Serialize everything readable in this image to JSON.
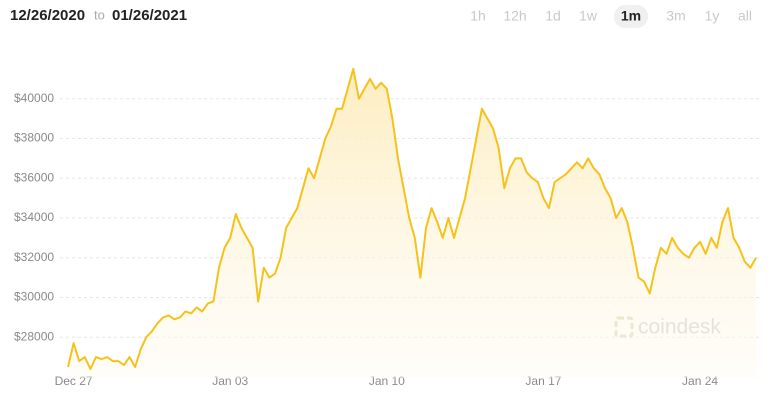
{
  "header": {
    "from": "12/26/2020",
    "joiner": "to",
    "to": "01/26/2021"
  },
  "range_buttons": [
    "1h",
    "12h",
    "1d",
    "1w",
    "1m",
    "3m",
    "1y",
    "all"
  ],
  "selected_range": "1m",
  "watermark": "coindesk",
  "chart_data": {
    "type": "area",
    "color": "#f5c21b",
    "x": [
      "2020-12-26T18:00",
      "2020-12-27T00:00",
      "2020-12-27T06:00",
      "2020-12-27T12:00",
      "2020-12-27T18:00",
      "2020-12-28T00:00",
      "2020-12-28T06:00",
      "2020-12-28T12:00",
      "2020-12-28T18:00",
      "2020-12-29T00:00",
      "2020-12-29T06:00",
      "2020-12-29T12:00",
      "2020-12-29T18:00",
      "2020-12-30T00:00",
      "2020-12-30T06:00",
      "2020-12-30T12:00",
      "2020-12-30T18:00",
      "2020-12-31T00:00",
      "2020-12-31T06:00",
      "2020-12-31T12:00",
      "2020-12-31T18:00",
      "2021-01-01T00:00",
      "2021-01-01T06:00",
      "2021-01-01T12:00",
      "2021-01-01T18:00",
      "2021-01-02T00:00",
      "2021-01-02T06:00",
      "2021-01-02T12:00",
      "2021-01-02T18:00",
      "2021-01-03T00:00",
      "2021-01-03T06:00",
      "2021-01-03T12:00",
      "2021-01-03T18:00",
      "2021-01-04T00:00",
      "2021-01-04T06:00",
      "2021-01-04T12:00",
      "2021-01-04T18:00",
      "2021-01-05T00:00",
      "2021-01-05T06:00",
      "2021-01-05T12:00",
      "2021-01-05T18:00",
      "2021-01-06T00:00",
      "2021-01-06T06:00",
      "2021-01-06T12:00",
      "2021-01-06T18:00",
      "2021-01-07T00:00",
      "2021-01-07T06:00",
      "2021-01-07T12:00",
      "2021-01-07T18:00",
      "2021-01-08T00:00",
      "2021-01-08T06:00",
      "2021-01-08T12:00",
      "2021-01-08T18:00",
      "2021-01-09T00:00",
      "2021-01-09T06:00",
      "2021-01-09T12:00",
      "2021-01-09T18:00",
      "2021-01-10T00:00",
      "2021-01-10T06:00",
      "2021-01-10T12:00",
      "2021-01-10T18:00",
      "2021-01-11T00:00",
      "2021-01-11T06:00",
      "2021-01-11T12:00",
      "2021-01-11T18:00",
      "2021-01-12T00:00",
      "2021-01-12T06:00",
      "2021-01-12T12:00",
      "2021-01-12T18:00",
      "2021-01-13T00:00",
      "2021-01-13T06:00",
      "2021-01-13T12:00",
      "2021-01-13T18:00",
      "2021-01-14T00:00",
      "2021-01-14T06:00",
      "2021-01-14T12:00",
      "2021-01-14T18:00",
      "2021-01-15T00:00",
      "2021-01-15T06:00",
      "2021-01-15T12:00",
      "2021-01-15T18:00",
      "2021-01-16T00:00",
      "2021-01-16T06:00",
      "2021-01-16T12:00",
      "2021-01-16T18:00",
      "2021-01-17T00:00",
      "2021-01-17T06:00",
      "2021-01-17T12:00",
      "2021-01-17T18:00",
      "2021-01-18T00:00",
      "2021-01-18T06:00",
      "2021-01-18T12:00",
      "2021-01-18T18:00",
      "2021-01-19T00:00",
      "2021-01-19T06:00",
      "2021-01-19T12:00",
      "2021-01-19T18:00",
      "2021-01-20T00:00",
      "2021-01-20T06:00",
      "2021-01-20T12:00",
      "2021-01-20T18:00",
      "2021-01-21T00:00",
      "2021-01-21T06:00",
      "2021-01-21T12:00",
      "2021-01-21T18:00",
      "2021-01-22T00:00",
      "2021-01-22T06:00",
      "2021-01-22T12:00",
      "2021-01-22T18:00",
      "2021-01-23T00:00",
      "2021-01-23T06:00",
      "2021-01-23T12:00",
      "2021-01-23T18:00",
      "2021-01-24T00:00",
      "2021-01-24T06:00",
      "2021-01-24T12:00",
      "2021-01-24T18:00",
      "2021-01-25T00:00",
      "2021-01-25T06:00",
      "2021-01-25T12:00",
      "2021-01-25T18:00",
      "2021-01-26T00:00",
      "2021-01-26T06:00",
      "2021-01-26T12:00"
    ],
    "values": [
      26500,
      27700,
      26800,
      27000,
      26400,
      27000,
      26900,
      27000,
      26800,
      26800,
      26600,
      27000,
      26500,
      27400,
      28000,
      28300,
      28700,
      29000,
      29100,
      28900,
      29000,
      29300,
      29200,
      29500,
      29300,
      29700,
      29800,
      31500,
      32500,
      33000,
      34200,
      33500,
      33000,
      32500,
      29800,
      31500,
      31000,
      31200,
      32000,
      33500,
      34000,
      34500,
      35500,
      36500,
      36000,
      37000,
      38000,
      38600,
      39500,
      39500,
      40500,
      41500,
      40000,
      40500,
      41000,
      40500,
      40800,
      40500,
      39000,
      37000,
      35500,
      34000,
      33000,
      31000,
      33500,
      34500,
      33800,
      33000,
      34000,
      33000,
      34000,
      35000,
      36500,
      38000,
      39500,
      39000,
      38500,
      37500,
      35500,
      36500,
      37000,
      37000,
      36300,
      36000,
      35800,
      35000,
      34500,
      35800,
      36000,
      36200,
      36500,
      36800,
      36500,
      37000,
      36500,
      36200,
      35500,
      35000,
      34000,
      34500,
      33800,
      32500,
      31000,
      30800,
      30200,
      31500,
      32500,
      32200,
      33000,
      32500,
      32200,
      32000,
      32500,
      32800,
      32200,
      33000,
      32500,
      33800,
      34500,
      33000,
      32500,
      31800,
      31500,
      32000
    ],
    "xlim": [
      "2020-12-26T18:00",
      "2021-01-26T12:00"
    ],
    "xticks": [
      {
        "value": "2020-12-27T00:00",
        "label": "Dec 27"
      },
      {
        "value": "2021-01-03T00:00",
        "label": "Jan 03"
      },
      {
        "value": "2021-01-10T00:00",
        "label": "Jan 10"
      },
      {
        "value": "2021-01-17T00:00",
        "label": "Jan 17"
      },
      {
        "value": "2021-01-24T00:00",
        "label": "Jan 24"
      }
    ],
    "ylim": [
      26200,
      42000
    ],
    "yticks": [
      {
        "value": 28000,
        "label": "$28000"
      },
      {
        "value": 30000,
        "label": "$30000"
      },
      {
        "value": 32000,
        "label": "$32000"
      },
      {
        "value": 34000,
        "label": "$34000"
      },
      {
        "value": 36000,
        "label": "$36000"
      },
      {
        "value": 38000,
        "label": "$38000"
      },
      {
        "value": 40000,
        "label": "$40000"
      }
    ],
    "grid": true
  }
}
